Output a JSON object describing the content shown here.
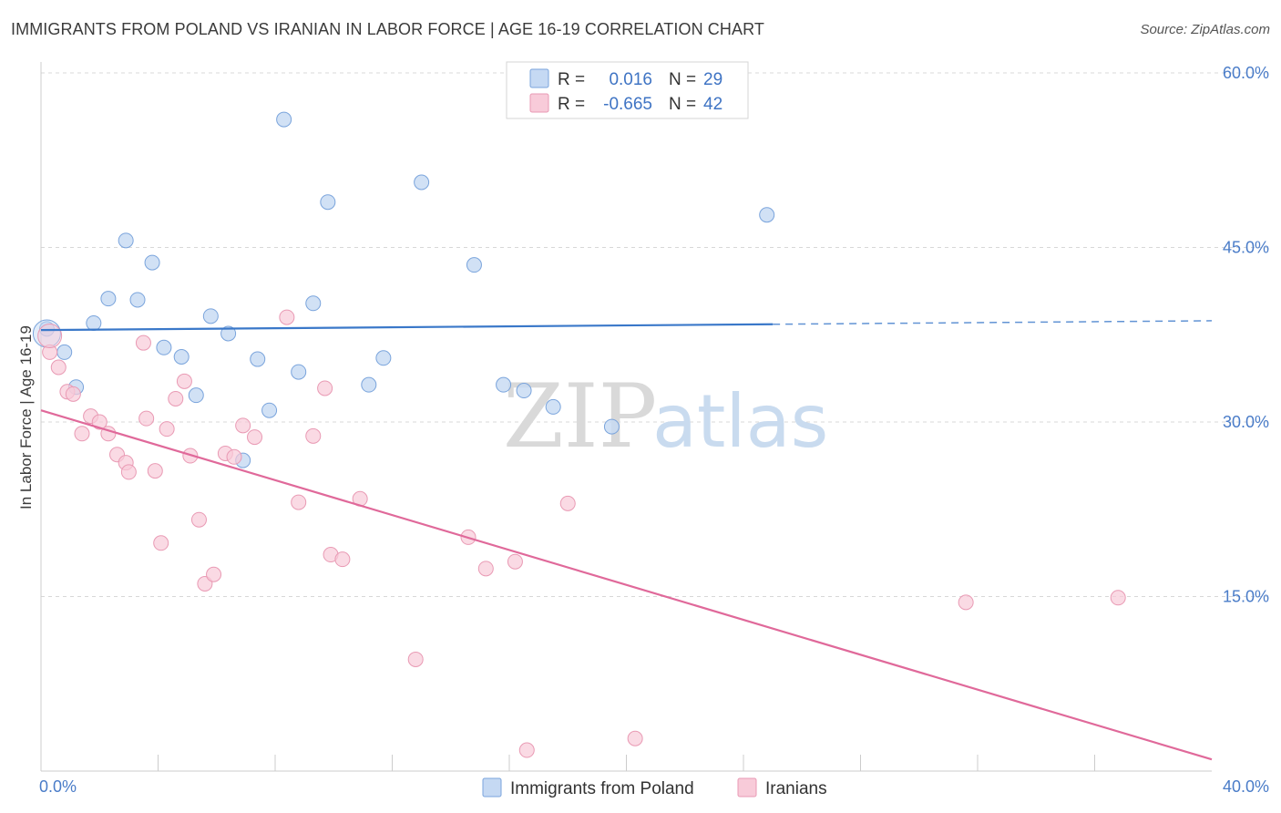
{
  "title": "IMMIGRANTS FROM POLAND VS IRANIAN IN LABOR FORCE | AGE 16-19 CORRELATION CHART",
  "source": "Source: ZipAtlas.com",
  "watermark": {
    "zip": "ZIP",
    "atlas": "atlas"
  },
  "colors": {
    "poland_fill": "#c5d9f3",
    "poland_stroke": "#7aa4dc",
    "poland_line": "#3a78c9",
    "iran_fill": "#f8cbd9",
    "iran_stroke": "#e99ab4",
    "iran_line": "#e0699a",
    "grid": "#d8d8d8",
    "tick_text": "#4a7cc8"
  },
  "legend": {
    "rows": [
      {
        "r_label": "R =",
        "r_value": "0.016",
        "n_label": "N =",
        "n_value": "29"
      },
      {
        "r_label": "R =",
        "r_value": "-0.665",
        "n_label": "N =",
        "n_value": "42"
      }
    ]
  },
  "bottom_legend": {
    "poland": "Immigrants from Poland",
    "iran": "Iranians"
  },
  "chart_data": {
    "type": "scatter",
    "ylabel": "In Labor Force | Age 16-19",
    "xlim": [
      0,
      40
    ],
    "ylim": [
      0,
      60
    ],
    "x_tick_labels": [
      "0.0%",
      "40.0%"
    ],
    "y_ticks": [
      15,
      30,
      45,
      60
    ],
    "y_tick_labels": [
      "15.0%",
      "30.0%",
      "45.0%",
      "60.0%"
    ],
    "grid": "horizontal dashed",
    "legend_placement": "top-center",
    "series": [
      {
        "name": "Immigrants from Poland",
        "points": [
          [
            0.2,
            38.0
          ],
          [
            0.8,
            36.0
          ],
          [
            1.2,
            33.0
          ],
          [
            1.8,
            38.5
          ],
          [
            2.3,
            40.6
          ],
          [
            2.9,
            45.6
          ],
          [
            3.3,
            40.5
          ],
          [
            3.8,
            43.7
          ],
          [
            4.2,
            36.4
          ],
          [
            4.8,
            35.6
          ],
          [
            5.3,
            32.3
          ],
          [
            5.8,
            39.1
          ],
          [
            6.4,
            37.6
          ],
          [
            6.9,
            26.7
          ],
          [
            7.4,
            35.4
          ],
          [
            7.8,
            31.0
          ],
          [
            8.3,
            56.0
          ],
          [
            8.8,
            34.3
          ],
          [
            9.3,
            40.2
          ],
          [
            9.8,
            48.9
          ],
          [
            11.2,
            33.2
          ],
          [
            11.7,
            35.5
          ],
          [
            13.0,
            50.6
          ],
          [
            14.8,
            43.5
          ],
          [
            15.8,
            33.2
          ],
          [
            16.5,
            32.7
          ],
          [
            17.5,
            31.3
          ],
          [
            19.5,
            29.6
          ],
          [
            24.8,
            47.8
          ]
        ],
        "trend": {
          "x": [
            0,
            25
          ],
          "y": [
            37.9,
            38.4
          ],
          "dashed_to": [
            40,
            38.7
          ]
        }
      },
      {
        "name": "Iranians",
        "points": [
          [
            0.3,
            36.0
          ],
          [
            0.6,
            34.7
          ],
          [
            0.9,
            32.6
          ],
          [
            1.1,
            32.4
          ],
          [
            1.4,
            29.0
          ],
          [
            1.7,
            30.5
          ],
          [
            2.0,
            30.0
          ],
          [
            2.3,
            29.0
          ],
          [
            2.6,
            27.2
          ],
          [
            2.9,
            26.5
          ],
          [
            3.0,
            25.7
          ],
          [
            3.5,
            36.8
          ],
          [
            3.6,
            30.3
          ],
          [
            3.9,
            25.8
          ],
          [
            4.1,
            19.6
          ],
          [
            4.3,
            29.4
          ],
          [
            4.6,
            32.0
          ],
          [
            4.9,
            33.5
          ],
          [
            5.1,
            27.1
          ],
          [
            5.4,
            21.6
          ],
          [
            5.6,
            16.1
          ],
          [
            5.9,
            16.9
          ],
          [
            6.3,
            27.3
          ],
          [
            6.6,
            27.0
          ],
          [
            6.9,
            29.7
          ],
          [
            7.3,
            28.7
          ],
          [
            8.4,
            39.0
          ],
          [
            8.8,
            23.1
          ],
          [
            9.3,
            28.8
          ],
          [
            9.7,
            32.9
          ],
          [
            9.9,
            18.6
          ],
          [
            10.3,
            18.2
          ],
          [
            10.9,
            23.4
          ],
          [
            12.8,
            9.6
          ],
          [
            14.6,
            20.1
          ],
          [
            15.2,
            17.4
          ],
          [
            16.2,
            18.0
          ],
          [
            16.6,
            1.8
          ],
          [
            18.0,
            23.0
          ],
          [
            20.3,
            2.8
          ],
          [
            31.6,
            14.5
          ],
          [
            36.8,
            14.9
          ]
        ],
        "trend": {
          "x": [
            0,
            40
          ],
          "y": [
            31.0,
            1.0
          ]
        }
      }
    ]
  }
}
